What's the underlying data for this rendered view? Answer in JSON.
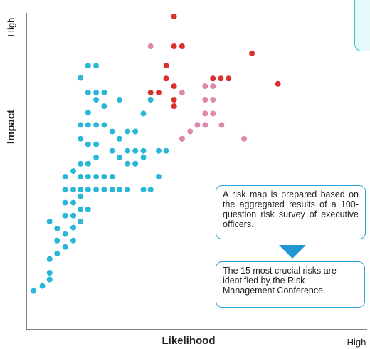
{
  "chart_data": {
    "type": "scatter",
    "title": "",
    "xlabel": "Likelihood",
    "ylabel": "Impact",
    "x_end_label": "High",
    "y_end_label": "High",
    "xlim": [
      0,
      100
    ],
    "ylim": [
      0,
      100
    ],
    "grid": false,
    "colors": {
      "low": "#29b6d8",
      "medium": "#de88b0",
      "top15": "#d9302c",
      "axis": "#333333",
      "callout_border": "#2ea8d8",
      "arrow": "#2196d3"
    },
    "series": [
      {
        "color_key": "low",
        "points": [
          [
            1.4,
            6.4
          ],
          [
            4.8,
            8.1
          ],
          [
            7.6,
            10.3
          ],
          [
            7.6,
            12.6
          ],
          [
            7.6,
            17.3
          ],
          [
            10.5,
            19.2
          ],
          [
            10.5,
            23.6
          ],
          [
            13.6,
            21.4
          ],
          [
            13.6,
            25.8
          ],
          [
            16.7,
            23.6
          ],
          [
            16.7,
            28.0
          ],
          [
            7.6,
            30.1
          ],
          [
            10.5,
            27.7
          ],
          [
            13.6,
            32.1
          ],
          [
            13.6,
            36.5
          ],
          [
            16.7,
            32.1
          ],
          [
            19.5,
            30.1
          ],
          [
            19.5,
            34.3
          ],
          [
            19.5,
            38.7
          ],
          [
            22.4,
            34.3
          ],
          [
            16.7,
            36.5
          ],
          [
            13.6,
            41.0
          ],
          [
            13.6,
            45.4
          ],
          [
            16.7,
            41.0
          ],
          [
            16.7,
            47.3
          ],
          [
            19.5,
            41.0
          ],
          [
            19.5,
            45.4
          ],
          [
            19.5,
            49.8
          ],
          [
            22.4,
            41.0
          ],
          [
            22.4,
            45.4
          ],
          [
            22.4,
            49.8
          ],
          [
            25.5,
            41.0
          ],
          [
            25.5,
            45.4
          ],
          [
            25.5,
            52.0
          ],
          [
            22.4,
            56.4
          ],
          [
            25.5,
            56.4
          ],
          [
            19.5,
            58.3
          ],
          [
            19.5,
            63.0
          ],
          [
            22.4,
            63.0
          ],
          [
            25.5,
            63.0
          ],
          [
            28.6,
            41.0
          ],
          [
            28.6,
            45.4
          ],
          [
            28.6,
            63.0
          ],
          [
            31.7,
            41.0
          ],
          [
            31.7,
            45.4
          ],
          [
            31.7,
            54.2
          ],
          [
            31.7,
            60.8
          ],
          [
            34.5,
            41.0
          ],
          [
            34.5,
            52.0
          ],
          [
            34.5,
            58.3
          ],
          [
            34.5,
            71.6
          ],
          [
            37.6,
            41.0
          ],
          [
            37.6,
            49.8
          ],
          [
            37.6,
            54.2
          ],
          [
            37.6,
            60.8
          ],
          [
            25.5,
            71.6
          ],
          [
            22.4,
            67.2
          ],
          [
            28.6,
            69.4
          ],
          [
            22.4,
            74.0
          ],
          [
            25.5,
            74.0
          ],
          [
            40.6,
            49.8
          ],
          [
            40.6,
            54.2
          ],
          [
            40.6,
            60.8
          ],
          [
            43.7,
            41.0
          ],
          [
            43.7,
            52.0
          ],
          [
            43.7,
            54.2
          ],
          [
            43.7,
            66.9
          ],
          [
            46.5,
            41.0
          ],
          [
            46.5,
            71.6
          ],
          [
            49.6,
            54.2
          ],
          [
            49.6,
            45.4
          ],
          [
            52.5,
            54.2
          ],
          [
            19.5,
            79.0
          ],
          [
            22.4,
            83.2
          ],
          [
            25.5,
            83.2
          ],
          [
            28.6,
            74.0
          ]
        ]
      },
      {
        "color_key": "medium",
        "points": [
          [
            46.5,
            89.8
          ],
          [
            52.5,
            78.8
          ],
          [
            55.5,
            69.4
          ],
          [
            58.6,
            74.0
          ],
          [
            58.6,
            58.3
          ],
          [
            61.7,
            60.8
          ],
          [
            64.5,
            63.0
          ],
          [
            67.5,
            63.0
          ],
          [
            67.5,
            66.9
          ],
          [
            70.5,
            66.9
          ],
          [
            67.5,
            71.6
          ],
          [
            70.5,
            71.6
          ],
          [
            67.5,
            76.2
          ],
          [
            70.5,
            76.2
          ],
          [
            70.5,
            78.8
          ],
          [
            82.5,
            58.3
          ],
          [
            73.8,
            63.0
          ]
        ]
      },
      {
        "color_key": "top15",
        "points": [
          [
            55.5,
            100
          ],
          [
            55.5,
            89.8
          ],
          [
            58.6,
            89.8
          ],
          [
            52.5,
            83.2
          ],
          [
            52.5,
            78.8
          ],
          [
            46.5,
            74.0
          ],
          [
            49.6,
            74.0
          ],
          [
            55.5,
            71.6
          ],
          [
            55.5,
            76.2
          ],
          [
            70.5,
            78.8
          ],
          [
            76.5,
            78.8
          ],
          [
            73.5,
            78.8
          ],
          [
            85.5,
            87.4
          ],
          [
            95.5,
            77.0
          ],
          [
            55.5,
            69.4
          ]
        ]
      }
    ]
  },
  "callouts": {
    "first": "A risk map is prepared based on the aggregated results of a 100-question risk survey of executive officers.",
    "second": "The 15 most crucial risks are identified by the Risk Management Conference."
  }
}
